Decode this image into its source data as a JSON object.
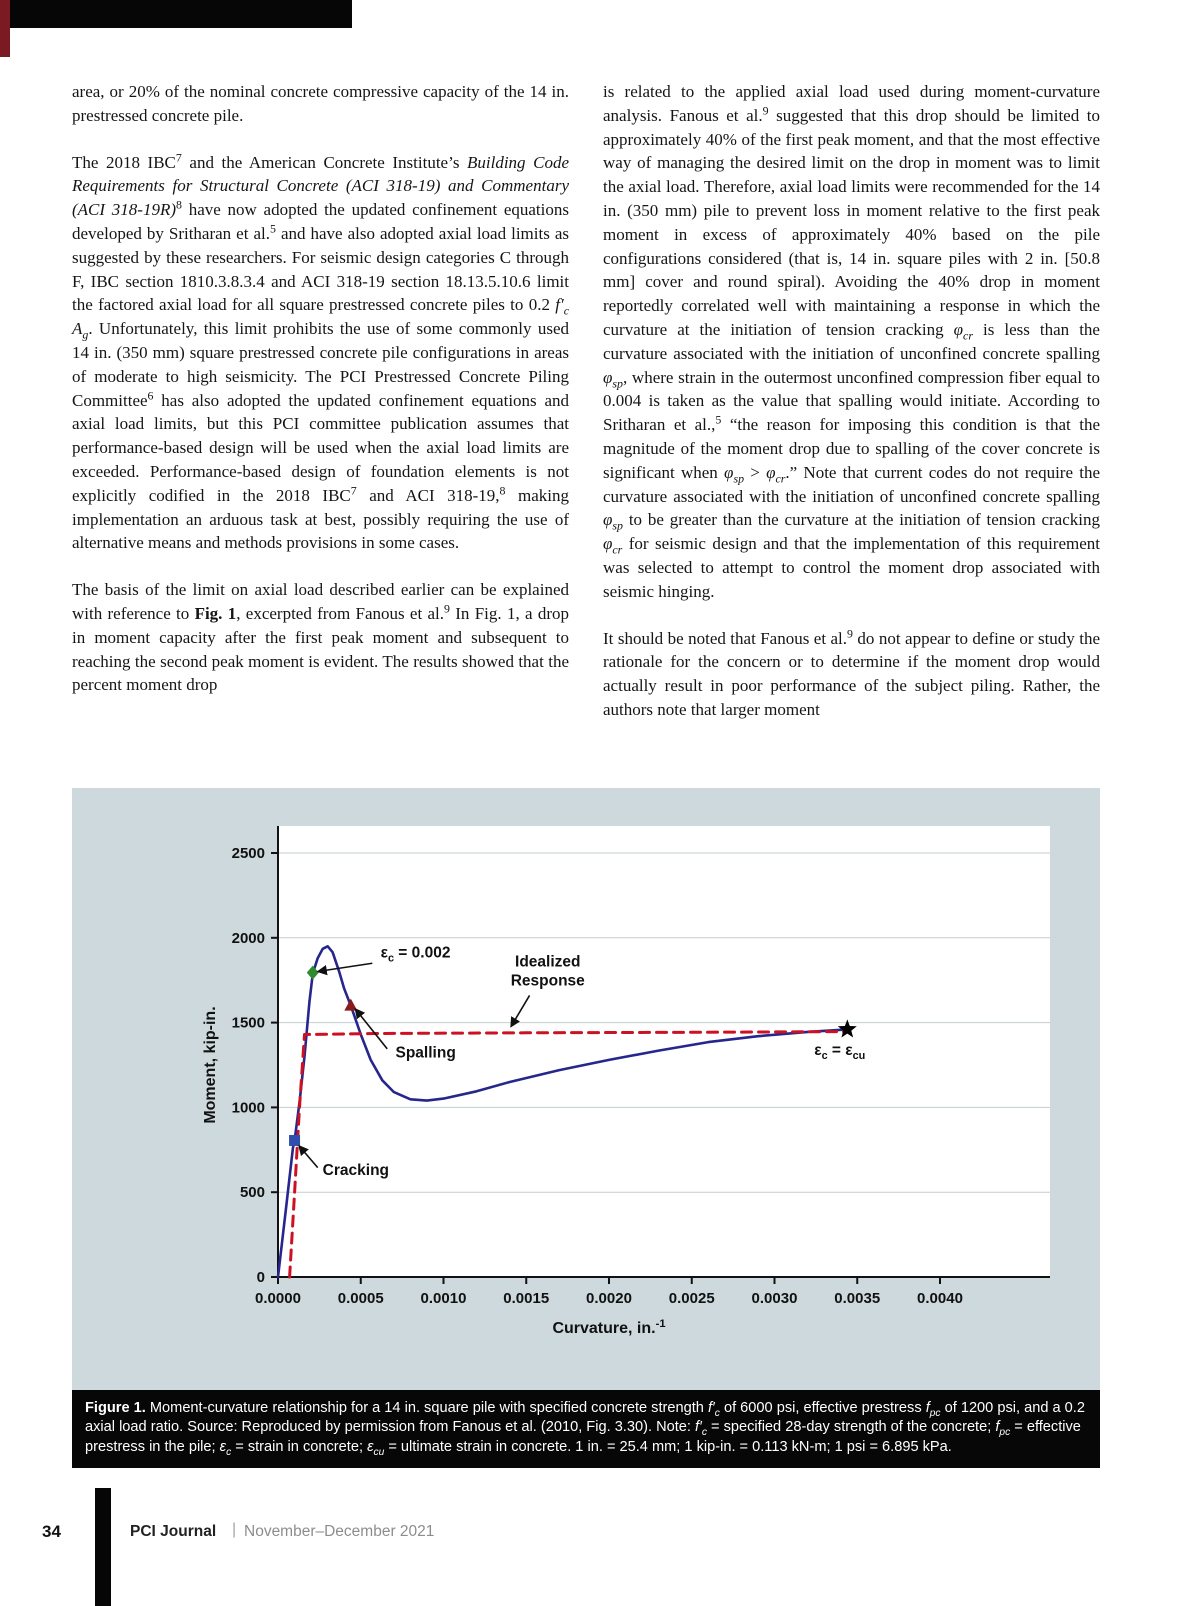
{
  "colors": {
    "accent_red": "#7b1a22",
    "caption_bg": "#070707",
    "figure_bg": "#cdd9dc",
    "curve_blue": "#26268c",
    "idealized_red": "#cc1122"
  },
  "article": {
    "left": [
      [
        {
          "t": "area, or 20% of the nominal concrete compressive capacity of the 14 in. prestressed concrete pile."
        }
      ],
      [
        {
          "t": "The 2018 IBC"
        },
        {
          "t": "7",
          "s": "sup"
        },
        {
          "t": " and the American Concrete Institute’s "
        },
        {
          "t": "Building Code Requirements for Structural Concrete (ACI 318-19) and Commentary (ACI 318-19R)",
          "s": "i"
        },
        {
          "t": "8",
          "s": "sup"
        },
        {
          "t": " have now adopted the updated confinement equations developed by Sritharan et al."
        },
        {
          "t": "5",
          "s": "sup"
        },
        {
          "t": " and have also adopted axial load limits as suggested by these researchers. For seismic design categories C through F, IBC section 1810.3.8.3.4 and ACI 318-19 section 18.13.5.10.6 limit the factored axial load for all square prestressed concrete piles to 0.2 "
        },
        {
          "t": "f",
          "s": "i"
        },
        {
          "t": "′",
          "s": "i"
        },
        {
          "t": "c",
          "s": "i sub"
        },
        {
          "t": " "
        },
        {
          "t": "A",
          "s": "i"
        },
        {
          "t": "g",
          "s": "i sub"
        },
        {
          "t": ". Unfortunately, this limit prohibits the use of some commonly used 14 in. (350 mm) square prestressed concrete pile configurations in areas of moderate to high seismicity. The PCI Prestressed Concrete Piling Committee"
        },
        {
          "t": "6",
          "s": "sup"
        },
        {
          "t": " has also adopted the updated confinement equations and axial load limits, but this PCI committee publication assumes that performance-based design will be used when the axial load limits are exceeded. Performance-based design of foundation elements is not explicitly codified in the 2018 IBC"
        },
        {
          "t": "7",
          "s": "sup"
        },
        {
          "t": " and ACI 318-19,"
        },
        {
          "t": "8",
          "s": "sup"
        },
        {
          "t": " making implementation an arduous task at best, possibly requiring the use of alternative means and methods provisions in some cases."
        }
      ],
      [
        {
          "t": "The basis of the limit on axial load described earlier can be explained with reference to "
        },
        {
          "t": "Fig. 1",
          "s": "b"
        },
        {
          "t": ", excerpted from Fanous et al."
        },
        {
          "t": "9",
          "s": "sup"
        },
        {
          "t": " In Fig. 1, a drop in moment capacity after the first peak moment and subsequent to reaching the second peak moment is evident. The results showed that the percent moment drop"
        }
      ]
    ],
    "right": [
      [
        {
          "t": "is related to the applied axial load used during moment-curvature analysis. Fanous et al."
        },
        {
          "t": "9",
          "s": "sup"
        },
        {
          "t": " suggested that this drop should be limited to approximately 40% of the first peak moment, and that the most effective way of managing the desired limit on the drop in moment was to limit the axial load. Therefore, axial load limits were recommended for the 14 in. (350 mm) pile to prevent loss in moment relative to the first peak moment in excess of approximately 40% based on the pile configurations considered (that is, 14 in. square piles with 2 in. [50.8 mm] cover and round spiral). Avoiding the 40% drop in moment reportedly correlated well with maintaining a response in which the curvature at the initiation of tension cracking "
        },
        {
          "t": "φ",
          "s": "i"
        },
        {
          "t": "cr",
          "s": "i sub"
        },
        {
          "t": " is less than the curvature associated with the initiation of unconfined concrete spalling "
        },
        {
          "t": "φ",
          "s": "i"
        },
        {
          "t": "sp",
          "s": "i sub"
        },
        {
          "t": ", where strain in the outermost unconfined compression fiber equal to 0.004 is taken as the value that spalling would initiate. According to Sritharan et al.,"
        },
        {
          "t": "5",
          "s": "sup"
        },
        {
          "t": " “the reason for imposing this condition is that the magnitude of the moment drop due to spalling of the cover concrete is significant when "
        },
        {
          "t": "φ",
          "s": "i"
        },
        {
          "t": "sp",
          "s": "i sub"
        },
        {
          "t": " > "
        },
        {
          "t": "φ",
          "s": "i"
        },
        {
          "t": "cr",
          "s": "i sub"
        },
        {
          "t": ".” Note that current codes do not require the curvature associated with the initiation of unconfined concrete spalling "
        },
        {
          "t": "φ",
          "s": "i"
        },
        {
          "t": "sp",
          "s": "i sub"
        },
        {
          "t": " to be greater than the curvature at the initiation of tension cracking "
        },
        {
          "t": "φ",
          "s": "i"
        },
        {
          "t": "cr",
          "s": "i sub"
        },
        {
          "t": " for seismic design and that the implementation of this requirement was selected to attempt to control the moment drop associated with seismic hinging."
        }
      ],
      [
        {
          "t": "It should be noted that Fanous et al."
        },
        {
          "t": "9",
          "s": "sup"
        },
        {
          "t": " do not appear to define or study the rationale for the concern or to determine if the moment drop would actually result in poor performance of the subject piling. Rather, the authors note that larger moment"
        }
      ]
    ]
  },
  "figure": {
    "caption": [
      {
        "t": "Figure 1.",
        "s": "b"
      },
      {
        "t": " Moment-curvature relationship for a 14 in. square pile with specified concrete strength "
      },
      {
        "t": "f",
        "s": "i"
      },
      {
        "t": "′",
        "s": "i"
      },
      {
        "t": "c",
        "s": "i sub"
      },
      {
        "t": " of 6000 psi, effective prestress "
      },
      {
        "t": "f",
        "s": "i"
      },
      {
        "t": "pc",
        "s": "i sub"
      },
      {
        "t": " of 1200 psi, and a 0.2 axial load ratio. Source: Reproduced by permission from Fanous et al. (2010, Fig. 3.30). Note: "
      },
      {
        "t": "f",
        "s": "i"
      },
      {
        "t": "′",
        "s": "i"
      },
      {
        "t": "c",
        "s": "i sub"
      },
      {
        "t": " = specified 28-day strength of the concrete; "
      },
      {
        "t": "f",
        "s": "i"
      },
      {
        "t": "pc",
        "s": "i sub"
      },
      {
        "t": " = effective prestress in the pile; "
      },
      {
        "t": "ε",
        "s": "i"
      },
      {
        "t": "c",
        "s": "i sub"
      },
      {
        "t": " = strain in concrete; "
      },
      {
        "t": "ε",
        "s": "i"
      },
      {
        "t": "cu",
        "s": "i sub"
      },
      {
        "t": " = ultimate strain in concrete. 1 in. = 25.4 mm; 1 kip-in. = 0.113 kN-m; 1 psi = 6.895 kPa."
      }
    ]
  },
  "footer": {
    "page_number": "34",
    "journal_name": "PCI Journal",
    "separator": "|",
    "issue": "November–December 2021"
  },
  "chart_data": {
    "type": "line",
    "ylabel": "Moment, kip-in.",
    "xlabel_segments": [
      {
        "t": "Curvature, in."
      },
      {
        "t": "-1",
        "s": "sup"
      }
    ],
    "xlim": [
      0,
      0.004
    ],
    "ylim": [
      0,
      2500
    ],
    "grid": true,
    "legend_position": "none",
    "x_ticks": [
      0,
      0.0005,
      0.001,
      0.0015,
      0.002,
      0.0025,
      0.003,
      0.0035,
      0.004
    ],
    "x_tick_labels": [
      "0.0000",
      "0.0005",
      "0.0010",
      "0.0015",
      "0.0020",
      "0.0025",
      "0.0030",
      "0.0035",
      "0.0040"
    ],
    "y_ticks": [
      0,
      500,
      1000,
      1500,
      2000,
      2500
    ],
    "y_tick_labels": [
      "0",
      "500",
      "1000",
      "1500",
      "2000",
      "2500"
    ],
    "series": [
      {
        "name": "moment-curvature-response",
        "color": "#26268c",
        "width": 2.6,
        "dash": null,
        "points": [
          [
            0,
            0
          ],
          [
            5e-05,
            420
          ],
          [
            9e-05,
            760
          ],
          [
            0.0001,
            805
          ],
          [
            0.00013,
            1030
          ],
          [
            0.00016,
            1300
          ],
          [
            0.00019,
            1620
          ],
          [
            0.00021,
            1790
          ],
          [
            0.00024,
            1880
          ],
          [
            0.00027,
            1935
          ],
          [
            0.0003,
            1950
          ],
          [
            0.00033,
            1915
          ],
          [
            0.00037,
            1800
          ],
          [
            0.0004,
            1700
          ],
          [
            0.00044,
            1600
          ],
          [
            0.0005,
            1430
          ],
          [
            0.00056,
            1280
          ],
          [
            0.00063,
            1160
          ],
          [
            0.0007,
            1090
          ],
          [
            0.0008,
            1048
          ],
          [
            0.0009,
            1040
          ],
          [
            0.001,
            1052
          ],
          [
            0.0012,
            1095
          ],
          [
            0.0014,
            1150
          ],
          [
            0.0017,
            1220
          ],
          [
            0.002,
            1280
          ],
          [
            0.0023,
            1335
          ],
          [
            0.0026,
            1385
          ],
          [
            0.0029,
            1420
          ],
          [
            0.0032,
            1445
          ],
          [
            0.00344,
            1460
          ]
        ]
      },
      {
        "name": "idealized-response",
        "color": "#cc1122",
        "width": 3,
        "dash": "10 7",
        "points": [
          [
            7e-05,
            0
          ],
          [
            0.0001,
            500
          ],
          [
            0.00013,
            1000
          ],
          [
            0.00016,
            1430
          ],
          [
            0.0006,
            1436
          ],
          [
            0.0015,
            1440
          ],
          [
            0.0025,
            1443
          ],
          [
            0.00342,
            1447
          ]
        ]
      }
    ],
    "markers": [
      {
        "name": "strain-0.002-marker",
        "shape": "diamond",
        "color": "#2e8b2e",
        "x": 0.00021,
        "y": 1795
      },
      {
        "name": "spalling-marker",
        "shape": "triangle",
        "color": "#8b1a1a",
        "x": 0.00044,
        "y": 1600
      },
      {
        "name": "cracking-marker",
        "shape": "square",
        "color": "#2e4fae",
        "x": 0.0001,
        "y": 805
      },
      {
        "name": "ultimate-strain-marker",
        "shape": "star",
        "color": "#000000",
        "x": 0.00344,
        "y": 1460
      }
    ],
    "annotations": [
      {
        "lines": [
          [
            {
              "t": "ε"
            },
            {
              "t": "c",
              "s": "sub"
            },
            {
              "t": " = 0.002"
            }
          ]
        ],
        "pos": [
          0.00062,
          1885
        ],
        "anchor": "start",
        "leader": {
          "from": [
            0.00057,
            1850
          ],
          "to": [
            0.000245,
            1802
          ]
        }
      },
      {
        "lines": [
          [
            {
              "t": "Idealized"
            }
          ],
          [
            {
              "t": "Response"
            }
          ]
        ],
        "pos": [
          0.00163,
          1830
        ],
        "anchor": "middle",
        "leader": {
          "from": [
            0.00152,
            1660
          ],
          "to": [
            0.00141,
            1480
          ]
        }
      },
      {
        "lines": [
          [
            {
              "t": "Spalling"
            }
          ]
        ],
        "pos": [
          0.00071,
          1295
        ],
        "anchor": "start",
        "leader": {
          "from": [
            0.00066,
            1345
          ],
          "to": [
            0.00047,
            1577
          ]
        }
      },
      {
        "lines": [
          [
            {
              "t": "Cracking"
            }
          ]
        ],
        "pos": [
          0.00027,
          600
        ],
        "anchor": "start",
        "leader": {
          "from": [
            0.00024,
            645
          ],
          "to": [
            0.00013,
            770
          ]
        }
      },
      {
        "lines": [
          [
            {
              "t": "ε"
            },
            {
              "t": "c",
              "s": "sub"
            },
            {
              "t": " = ε"
            },
            {
              "t": "cu",
              "s": "sub"
            }
          ]
        ],
        "pos": [
          0.00324,
          1310
        ],
        "anchor": "start"
      }
    ]
  }
}
